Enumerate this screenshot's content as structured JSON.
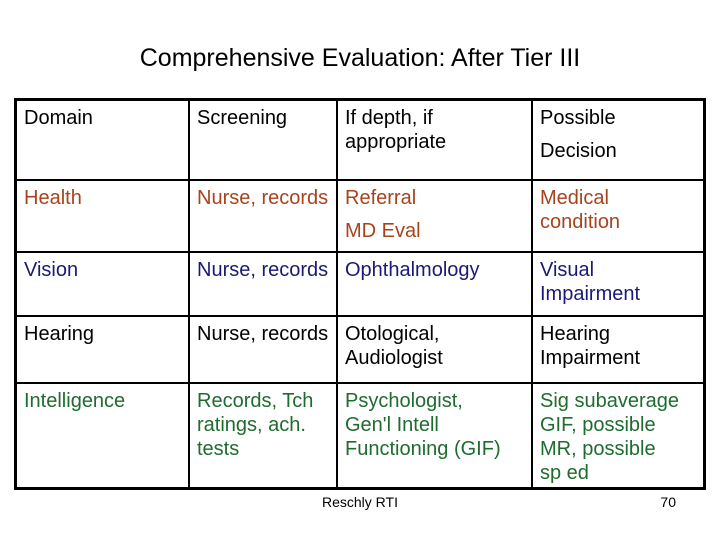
{
  "slide": {
    "title": "Comprehensive Evaluation: After Tier III",
    "background_color": "#FFFFFF",
    "border_color": "#000000"
  },
  "footer": {
    "caption": "Reschly RTI",
    "page_number": "70"
  },
  "table": {
    "rows": [
      {
        "id": "header",
        "color": "#000000",
        "cells": [
          {
            "lines": [
              "Domain"
            ]
          },
          {
            "lines": [
              "Screening"
            ]
          },
          {
            "lines": [
              "If depth, if",
              "appropriate"
            ]
          },
          {
            "lines": [
              "Possible",
              "Decision"
            ]
          }
        ]
      },
      {
        "id": "health",
        "color": "#A8431E",
        "cells": [
          {
            "lines": [
              "Health"
            ]
          },
          {
            "lines": [
              "Nurse, records"
            ]
          },
          {
            "lines": [
              "Referral",
              "MD Eval"
            ]
          },
          {
            "lines": [
              "Medical",
              "condition"
            ]
          }
        ]
      },
      {
        "id": "vision",
        "color": "#1A1A75",
        "cells": [
          {
            "lines": [
              "Vision"
            ]
          },
          {
            "lines": [
              "Nurse, records"
            ]
          },
          {
            "lines": [
              "Ophthalmology"
            ]
          },
          {
            "lines": [
              "Visual",
              "Impairment"
            ]
          }
        ]
      },
      {
        "id": "hearing",
        "color": "#000000",
        "cells": [
          {
            "lines": [
              "Hearing"
            ]
          },
          {
            "lines": [
              "Nurse, records"
            ]
          },
          {
            "lines": [
              "Otological,",
              "Audiologist"
            ]
          },
          {
            "lines": [
              "Hearing",
              "Impairment"
            ]
          }
        ]
      },
      {
        "id": "intelligence",
        "color": "#1F6C2F",
        "cells": [
          {
            "lines": [
              "Intelligence"
            ]
          },
          {
            "lines": [
              "Records, Tch",
              "ratings, ach.",
              "tests"
            ]
          },
          {
            "lines": [
              "Psychologist,",
              "Gen'l Intell",
              "Functioning (GIF)"
            ]
          },
          {
            "lines": [
              "Sig subaverage",
              "GIF, possible",
              "MR, possible",
              "sp ed"
            ]
          }
        ]
      }
    ]
  }
}
